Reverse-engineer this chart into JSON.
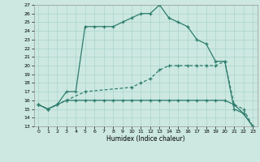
{
  "xlabel": "Humidex (Indice chaleur)",
  "xlim": [
    -0.5,
    23.5
  ],
  "ylim": [
    13,
    27
  ],
  "xticks": [
    0,
    1,
    2,
    3,
    4,
    5,
    6,
    7,
    8,
    9,
    10,
    11,
    12,
    13,
    14,
    15,
    16,
    17,
    18,
    19,
    20,
    21,
    22,
    23
  ],
  "yticks": [
    13,
    14,
    15,
    16,
    17,
    18,
    19,
    20,
    21,
    22,
    23,
    24,
    25,
    26,
    27
  ],
  "bg_color": "#cce8e0",
  "line_color": "#2e7d6e",
  "grid_color": "#aad4cc",
  "line1_x": [
    0,
    1,
    2,
    3,
    4,
    5,
    6,
    7,
    8,
    9,
    10,
    11,
    12,
    13,
    14,
    15,
    16,
    17,
    18,
    19,
    20,
    21,
    22,
    23
  ],
  "line1_y": [
    15.5,
    15.0,
    15.5,
    17.0,
    17.0,
    24.5,
    24.5,
    24.5,
    24.5,
    25.0,
    25.5,
    26.0,
    26.0,
    27.0,
    25.5,
    25.0,
    24.5,
    23.0,
    22.5,
    20.5,
    20.5,
    15.0,
    14.5,
    13.0
  ],
  "line2_x": [
    0,
    1,
    3,
    5,
    10,
    11,
    12,
    13,
    14,
    15,
    16,
    17,
    18,
    19,
    20,
    21,
    22,
    23
  ],
  "line2_y": [
    15.5,
    15.0,
    16.0,
    17.0,
    17.5,
    18.0,
    18.5,
    19.5,
    20.0,
    20.0,
    20.0,
    20.0,
    20.0,
    20.0,
    20.5,
    15.5,
    15.0,
    13.0
  ],
  "line3_x": [
    0,
    1,
    2,
    3,
    4,
    5,
    6,
    7,
    8,
    9,
    10,
    11,
    12,
    13,
    14,
    15,
    16,
    17,
    18,
    19,
    20,
    21,
    22,
    23
  ],
  "line3_y": [
    15.5,
    15.0,
    15.5,
    16.0,
    16.0,
    16.0,
    16.0,
    16.0,
    16.0,
    16.0,
    16.0,
    16.0,
    16.0,
    16.0,
    16.0,
    16.0,
    16.0,
    16.0,
    16.0,
    16.0,
    16.0,
    15.5,
    14.5,
    13.0
  ]
}
